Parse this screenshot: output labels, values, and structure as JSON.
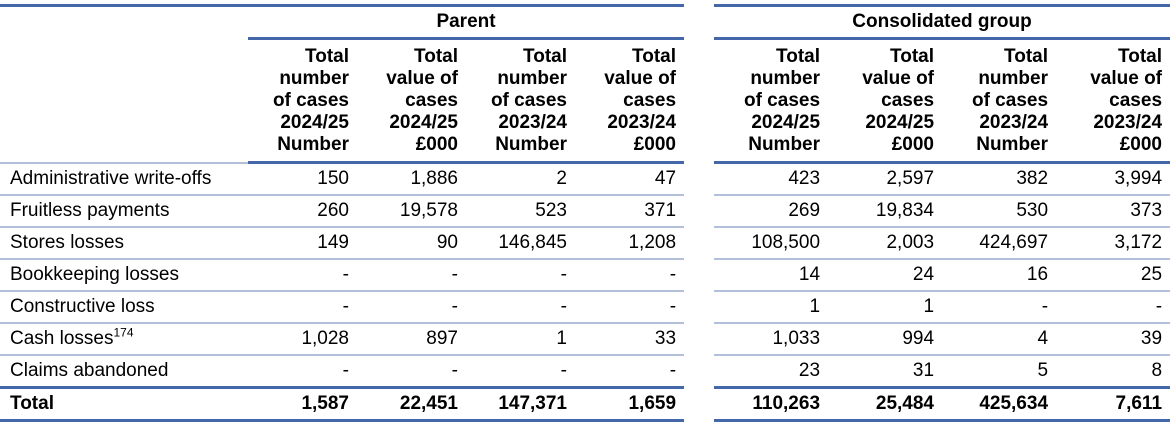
{
  "colors": {
    "rule_dark": "#4467a9",
    "rule_light": "#b3c0d9",
    "text": "#000000",
    "background": "#ffffff"
  },
  "table": {
    "groups": [
      {
        "label": "Parent"
      },
      {
        "label": "Consolidated group"
      }
    ],
    "column_headers": [
      "Total\nnumber\nof cases\n2024/25\nNumber",
      "Total\nvalue of\ncases\n2024/25\n£000",
      "Total\nnumber\nof cases\n2023/24\nNumber",
      "Total\nvalue of\ncases\n2023/24\n£000"
    ],
    "rows": [
      {
        "label": "Administrative write-offs",
        "parent": [
          "150",
          "1,886",
          "2",
          "47"
        ],
        "consolidated": [
          "423",
          "2,597",
          "382",
          "3,994"
        ]
      },
      {
        "label": "Fruitless payments",
        "parent": [
          "260",
          "19,578",
          "523",
          "371"
        ],
        "consolidated": [
          "269",
          "19,834",
          "530",
          "373"
        ]
      },
      {
        "label": "Stores losses",
        "parent": [
          "149",
          "90",
          "146,845",
          "1,208"
        ],
        "consolidated": [
          "108,500",
          "2,003",
          "424,697",
          "3,172"
        ]
      },
      {
        "label": "Bookkeeping losses",
        "parent": [
          "-",
          "-",
          "-",
          "-"
        ],
        "consolidated": [
          "14",
          "24",
          "16",
          "25"
        ]
      },
      {
        "label": "Constructive loss",
        "parent": [
          "-",
          "-",
          "-",
          "-"
        ],
        "consolidated": [
          "1",
          "1",
          "-",
          "-"
        ]
      },
      {
        "label": "Cash losses",
        "label_sup": "174",
        "parent": [
          "1,028",
          "897",
          "1",
          "33"
        ],
        "consolidated": [
          "1,033",
          "994",
          "4",
          "39"
        ]
      },
      {
        "label": "Claims abandoned",
        "parent": [
          "-",
          "-",
          "-",
          "-"
        ],
        "consolidated": [
          "23",
          "31",
          "5",
          "8"
        ]
      }
    ],
    "total_row": {
      "label": "Total",
      "parent": [
        "1,587",
        "22,451",
        "147,371",
        "1,659"
      ],
      "consolidated": [
        "110,263",
        "25,484",
        "425,634",
        "7,611"
      ]
    }
  }
}
